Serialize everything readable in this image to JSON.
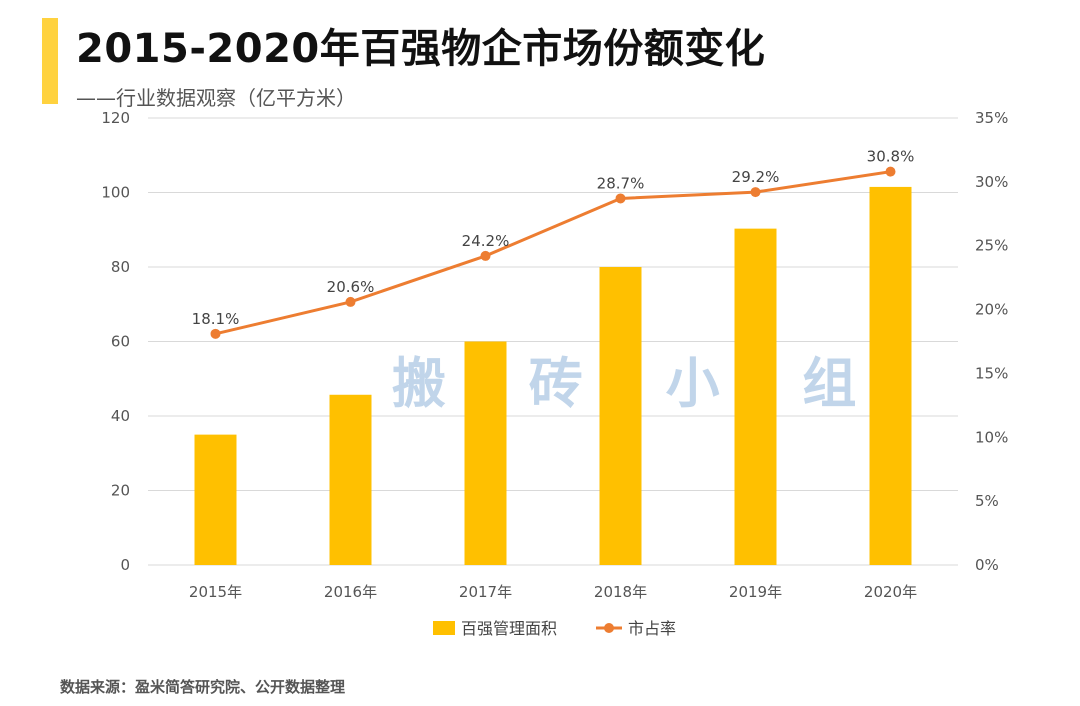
{
  "title": "2015-2020年百强物企市场份额变化",
  "subtitle": "——行业数据观察（亿平方米）",
  "source": "数据来源：盈米简答研究院、公开数据整理",
  "watermark": "搬 砖 小 组",
  "chart_data": {
    "type": "bar",
    "title": "2015-2020年百强物企市场份额变化",
    "categories": [
      "2015年",
      "2016年",
      "2017年",
      "2018年",
      "2019年",
      "2020年"
    ],
    "series": [
      {
        "name": "百强管理面积",
        "type": "bar",
        "axis": "left",
        "color": "#FFC000",
        "values": [
          35,
          45.7,
          60,
          80,
          90.3,
          101.5
        ]
      },
      {
        "name": "市占率",
        "type": "line",
        "axis": "right",
        "color": "#ED7D31",
        "values": [
          18.1,
          20.6,
          24.2,
          28.7,
          29.2,
          30.8
        ],
        "labels": [
          "18.1%",
          "20.6%",
          "24.2%",
          "28.7%",
          "29.2%",
          "30.8%"
        ]
      }
    ],
    "y_left": {
      "min": 0,
      "max": 120,
      "ticks": [
        "0",
        "20",
        "40",
        "60",
        "80",
        "100",
        "120"
      ]
    },
    "y_right": {
      "min": 0,
      "max": 35,
      "ticks": [
        "0%",
        "5%",
        "10%",
        "15%",
        "20%",
        "25%",
        "30%",
        "35%"
      ]
    },
    "grid": true,
    "legend_position": "bottom-center"
  }
}
